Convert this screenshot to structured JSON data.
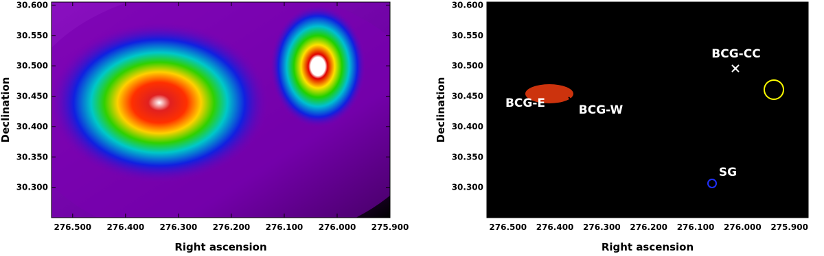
{
  "chart_data": [
    {
      "type": "image",
      "xlabel": "Right ascension",
      "ylabel": "Declination",
      "xlim": [
        276.54,
        275.9
      ],
      "ylim": [
        30.25,
        30.605
      ],
      "xticks": [
        {
          "value": 276.5,
          "label": "276.500"
        },
        {
          "value": 276.4,
          "label": "276.400"
        },
        {
          "value": 276.3,
          "label": "276.300"
        },
        {
          "value": 276.2,
          "label": "276.200"
        },
        {
          "value": 276.1,
          "label": "276.100"
        },
        {
          "value": 276.0,
          "label": "276.000"
        },
        {
          "value": 275.9,
          "label": "275.900"
        }
      ],
      "yticks": [
        {
          "value": 30.3,
          "label": "30.300"
        },
        {
          "value": 30.35,
          "label": "30.350"
        },
        {
          "value": 30.4,
          "label": "30.400"
        },
        {
          "value": 30.45,
          "label": "30.450"
        },
        {
          "value": 30.5,
          "label": "30.500"
        },
        {
          "value": 30.55,
          "label": "30.550"
        },
        {
          "value": 30.6,
          "label": "30.600"
        }
      ]
    },
    {
      "type": "image",
      "xlabel": "Right ascension",
      "ylabel": "Declination",
      "xlim": [
        276.545,
        275.86
      ],
      "ylim": [
        30.25,
        30.605
      ],
      "xticks": [
        {
          "value": 276.5,
          "label": "276.500"
        },
        {
          "value": 276.4,
          "label": "276.400"
        },
        {
          "value": 276.3,
          "label": "276.300"
        },
        {
          "value": 276.2,
          "label": "276.200"
        },
        {
          "value": 276.1,
          "label": "276.100"
        },
        {
          "value": 276.0,
          "label": "276.000"
        },
        {
          "value": 275.9,
          "label": "275.900"
        }
      ],
      "yticks": [
        {
          "value": 30.3,
          "label": "30.300"
        },
        {
          "value": 30.35,
          "label": "30.350"
        },
        {
          "value": 30.4,
          "label": "30.400"
        },
        {
          "value": 30.45,
          "label": "30.450"
        },
        {
          "value": 30.5,
          "label": "30.500"
        },
        {
          "value": 30.55,
          "label": "30.550"
        },
        {
          "value": 30.6,
          "label": "30.600"
        }
      ],
      "annotations": [
        "BCG-CC",
        "BCG-E",
        "BCG-W",
        "SG"
      ]
    }
  ]
}
